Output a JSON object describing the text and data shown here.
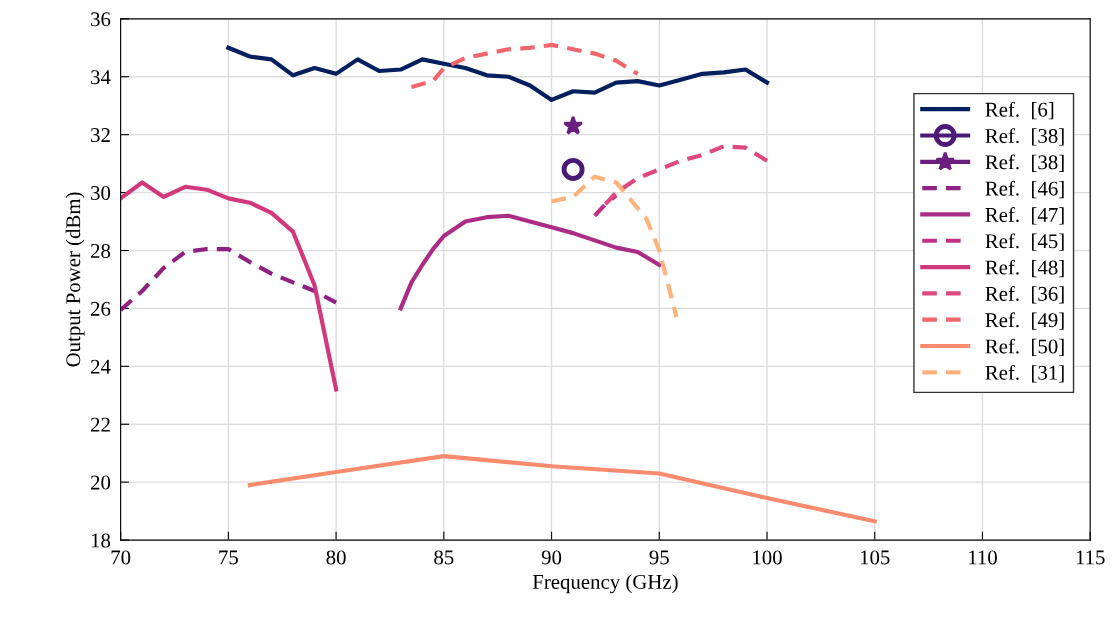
{
  "chart_data": {
    "type": "line",
    "xlabel": "Frequency (GHz)",
    "ylabel": "Output Power (dBm)",
    "xlim": [
      70,
      115
    ],
    "xticks": [
      70,
      75,
      80,
      85,
      90,
      95,
      100,
      105,
      110,
      115
    ],
    "ylim": [
      18,
      36
    ],
    "yticks": [
      18,
      20,
      22,
      24,
      26,
      28,
      30,
      32,
      34,
      36
    ],
    "grid": true,
    "legend": "right",
    "series": [
      {
        "name": "Ref.  [6]",
        "color": "#001f5f",
        "line_style": "solid",
        "x": [
          75,
          76,
          77,
          78,
          79,
          80,
          81,
          82,
          83,
          84,
          85,
          86,
          87,
          88,
          89,
          90,
          91,
          92,
          93,
          94,
          95,
          96,
          97,
          98,
          99,
          100
        ],
        "values": [
          35.0,
          34.7,
          34.6,
          34.05,
          34.3,
          34.1,
          34.6,
          34.2,
          34.25,
          34.6,
          34.45,
          34.3,
          34.05,
          34.0,
          33.7,
          33.2,
          33.5,
          33.45,
          33.8,
          33.85,
          33.7,
          33.9,
          34.1,
          34.15,
          34.25,
          33.8
        ]
      },
      {
        "name": "Ref.  [38]",
        "color": "#4b1a77",
        "line_style": "solid",
        "marker": "circle",
        "x": [
          91
        ],
        "values": [
          30.8
        ]
      },
      {
        "name": "Ref.  [38]",
        "color": "#6a1e7e",
        "line_style": "solid",
        "marker": "star",
        "x": [
          91
        ],
        "values": [
          32.3
        ]
      },
      {
        "name": "Ref.  [46]",
        "color": "#8e2181",
        "line_style": "dashed",
        "x": [
          70,
          71,
          72,
          73,
          74,
          75,
          76,
          77,
          78,
          79,
          80
        ],
        "values": [
          25.95,
          26.6,
          27.4,
          27.95,
          28.05,
          28.05,
          27.6,
          27.2,
          26.9,
          26.6,
          26.2
        ]
      },
      {
        "name": "Ref.  [47]",
        "color": "#ab2c84",
        "line_style": "solid",
        "x": [
          83,
          83.5,
          84,
          84.5,
          85,
          86,
          87,
          88,
          89,
          90,
          91,
          92,
          93,
          94,
          95
        ],
        "values": [
          26.0,
          26.9,
          27.5,
          28.05,
          28.5,
          29.0,
          29.15,
          29.2,
          29.0,
          28.8,
          28.6,
          28.35,
          28.1,
          27.95,
          27.5
        ]
      },
      {
        "name": "Ref.  [45]",
        "color": "#c13183",
        "line_style": "dashed",
        "x": [
          92,
          92.5,
          93
        ],
        "values": [
          29.2,
          29.6,
          29.9
        ]
      },
      {
        "name": "Ref.  [48]",
        "color": "#d1397b",
        "line_style": "solid",
        "x": [
          70,
          71,
          72,
          73,
          74,
          75,
          76,
          77,
          78,
          79,
          80
        ],
        "values": [
          29.8,
          30.35,
          29.85,
          30.2,
          30.1,
          29.8,
          29.65,
          29.3,
          28.65,
          26.8,
          23.2
        ]
      },
      {
        "name": "Ref.  [36]",
        "color": "#e04880",
        "line_style": "dashed",
        "x": [
          92.5,
          93,
          94,
          95,
          96,
          97,
          98,
          99,
          100
        ],
        "values": [
          29.6,
          30.0,
          30.5,
          30.8,
          31.1,
          31.3,
          31.6,
          31.55,
          31.1
        ]
      },
      {
        "name": "Ref.  [49]",
        "color": "#f0666c",
        "line_style": "dashed",
        "x": [
          83.5,
          84.5,
          85,
          86,
          87,
          88,
          89,
          90,
          91,
          92,
          93,
          94
        ],
        "values": [
          33.65,
          33.85,
          34.3,
          34.65,
          34.8,
          34.95,
          35.0,
          35.1,
          34.95,
          34.8,
          34.55,
          34.1
        ]
      },
      {
        "name": "Ref.  [50]",
        "color": "#fb8b6e",
        "line_style": "solid",
        "x": [
          76,
          80,
          85,
          90,
          95,
          100,
          105
        ],
        "values": [
          19.9,
          20.35,
          20.9,
          20.55,
          20.3,
          19.45,
          18.65
        ]
      },
      {
        "name": "Ref.  [31]",
        "color": "#fdb27c",
        "line_style": "dashed",
        "x": [
          90,
          91,
          92,
          93,
          94.4,
          95,
          95.8
        ],
        "values": [
          29.7,
          29.85,
          30.55,
          30.35,
          29.1,
          28.0,
          25.7
        ]
      }
    ]
  }
}
